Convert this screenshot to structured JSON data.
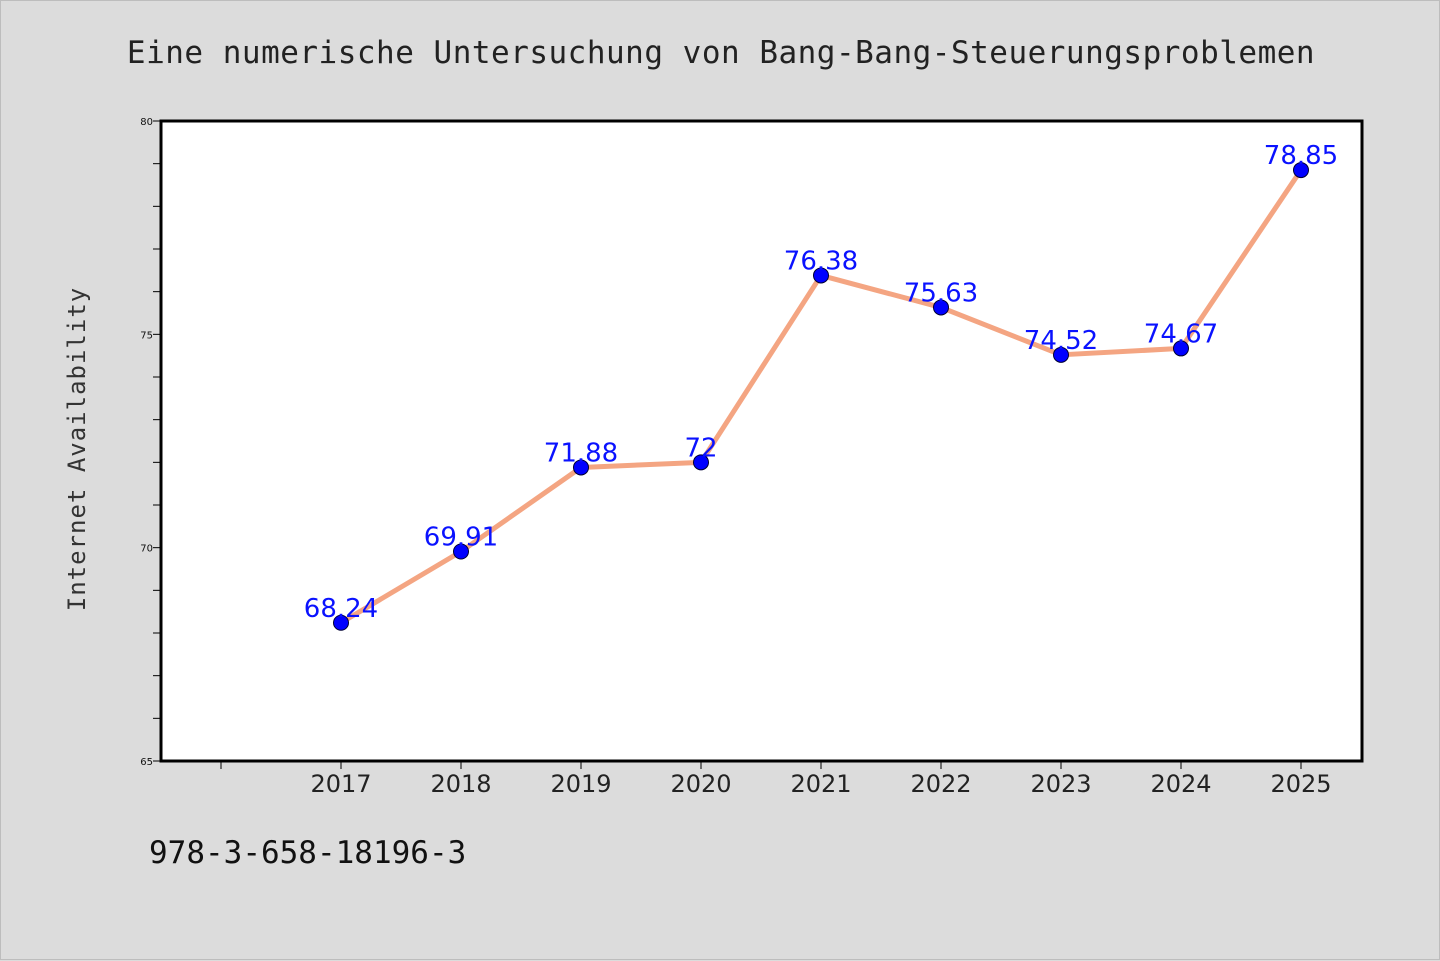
{
  "chart_data": {
    "type": "line",
    "title": "Eine numerische Untersuchung von Bang-Bang-Steuerungsproblemen",
    "xlabel": "",
    "ylabel": "Internet Availability",
    "categories": [
      "2017",
      "2018",
      "2019",
      "2020",
      "2021",
      "2022",
      "2023",
      "2024",
      "2025"
    ],
    "series": [
      {
        "values": [
          68.24,
          69.91,
          71.88,
          72,
          76.38,
          75.63,
          74.52,
          74.67,
          78.85
        ],
        "labels": [
          "68.24",
          "69.91",
          "71.88",
          "72",
          "76.38",
          "75.63",
          "74.52",
          "74.67",
          "78.85"
        ]
      }
    ],
    "ylim": [
      65,
      80
    ],
    "yticks": [
      "65",
      "70",
      "75",
      "80"
    ],
    "grid": false,
    "legend": "none",
    "line_color": "#f4a582",
    "marker_color": "#0000ff"
  },
  "footer": {
    "isbn": "978-3-658-18196-3"
  }
}
